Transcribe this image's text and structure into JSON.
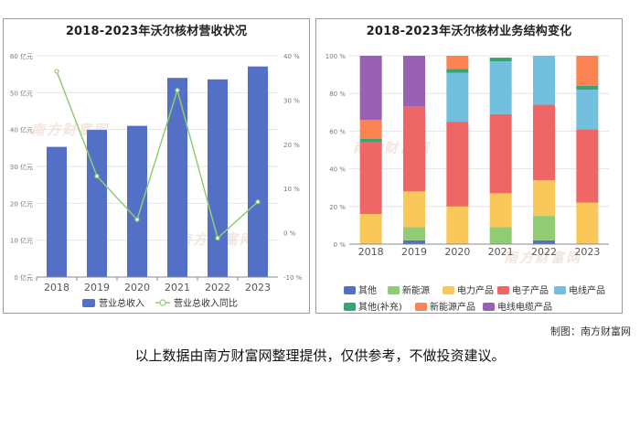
{
  "credit": "制图：南方财富网",
  "footer": "以上数据由南方财富网整理提供，仅供参考，不做投资建议。",
  "watermark": "南方财富网",
  "colors": {
    "revenue_bar": "#5470c6",
    "growth_line": "#91cc75",
    "other": "#5470c6",
    "new_energy": "#91cc75",
    "power_products": "#fac858",
    "electronic_products": "#ee6666",
    "wire_products": "#73c0de",
    "other_supplement": "#3ba272",
    "new_energy_products": "#fc8452",
    "wire_cable_products": "#9a60b4"
  },
  "chart_data": [
    {
      "type": "bar",
      "title": "2018-2023年沃尔核材营收状况",
      "categories": [
        "2018",
        "2019",
        "2020",
        "2021",
        "2022",
        "2023"
      ],
      "y_left": {
        "ticks": [
          0,
          10,
          20,
          30,
          40,
          50,
          60
        ],
        "tick_labels": [
          "0 亿元",
          "10 亿元",
          "20 亿元",
          "30 亿元",
          "40 亿元",
          "50 亿元",
          "60 亿元"
        ],
        "range": [
          0,
          60
        ]
      },
      "y_right": {
        "ticks": [
          -10,
          0,
          10,
          20,
          30,
          40
        ],
        "tick_labels": [
          "-10 %",
          "0 %",
          "10 %",
          "20 %",
          "30 %",
          "40 %"
        ],
        "range": [
          -10,
          40
        ]
      },
      "series": [
        {
          "name": "营业总收入",
          "type": "bar",
          "axis": "left",
          "values": [
            35.3,
            39.9,
            41.0,
            54.0,
            53.6,
            57.1
          ]
        },
        {
          "name": "营业总收入同比",
          "type": "line",
          "axis": "right",
          "values": [
            36.5,
            12.8,
            3.0,
            32.2,
            -1.2,
            7.0
          ]
        }
      ],
      "legend_position": "bottom"
    },
    {
      "type": "bar",
      "stacked": true,
      "title": "2018-2023年沃尔核材业务结构变化",
      "categories": [
        "2018",
        "2019",
        "2020",
        "2021",
        "2022",
        "2023"
      ],
      "y": {
        "ticks": [
          0,
          20,
          40,
          60,
          80,
          100
        ],
        "tick_labels": [
          "0 %",
          "20 %",
          "40 %",
          "60 %",
          "80 %",
          "100 %"
        ],
        "range": [
          0,
          100
        ]
      },
      "series": [
        {
          "name": "其他",
          "key": "other",
          "values": [
            0,
            2,
            0,
            0,
            2,
            0
          ]
        },
        {
          "name": "新能源",
          "key": "new_energy",
          "values": [
            0,
            7,
            0,
            9,
            13,
            0
          ]
        },
        {
          "name": "电力产品",
          "key": "power_products",
          "values": [
            16,
            19,
            20,
            18,
            19,
            22
          ]
        },
        {
          "name": "电子产品",
          "key": "electronic_products",
          "values": [
            38,
            45,
            45,
            42,
            40,
            39
          ]
        },
        {
          "name": "电线产品",
          "key": "wire_products",
          "values": [
            0,
            0,
            26,
            28,
            26,
            21
          ]
        },
        {
          "name": "其他(补充)",
          "key": "other_supplement",
          "values": [
            2,
            0,
            2,
            2,
            0,
            2
          ]
        },
        {
          "name": "新能源产品",
          "key": "new_energy_products",
          "values": [
            10,
            0,
            7,
            0,
            0,
            16
          ]
        },
        {
          "name": "电线电缆产品",
          "key": "wire_cable_products",
          "values": [
            34,
            27,
            0,
            0,
            0,
            0
          ]
        }
      ],
      "legend_position": "bottom"
    }
  ]
}
